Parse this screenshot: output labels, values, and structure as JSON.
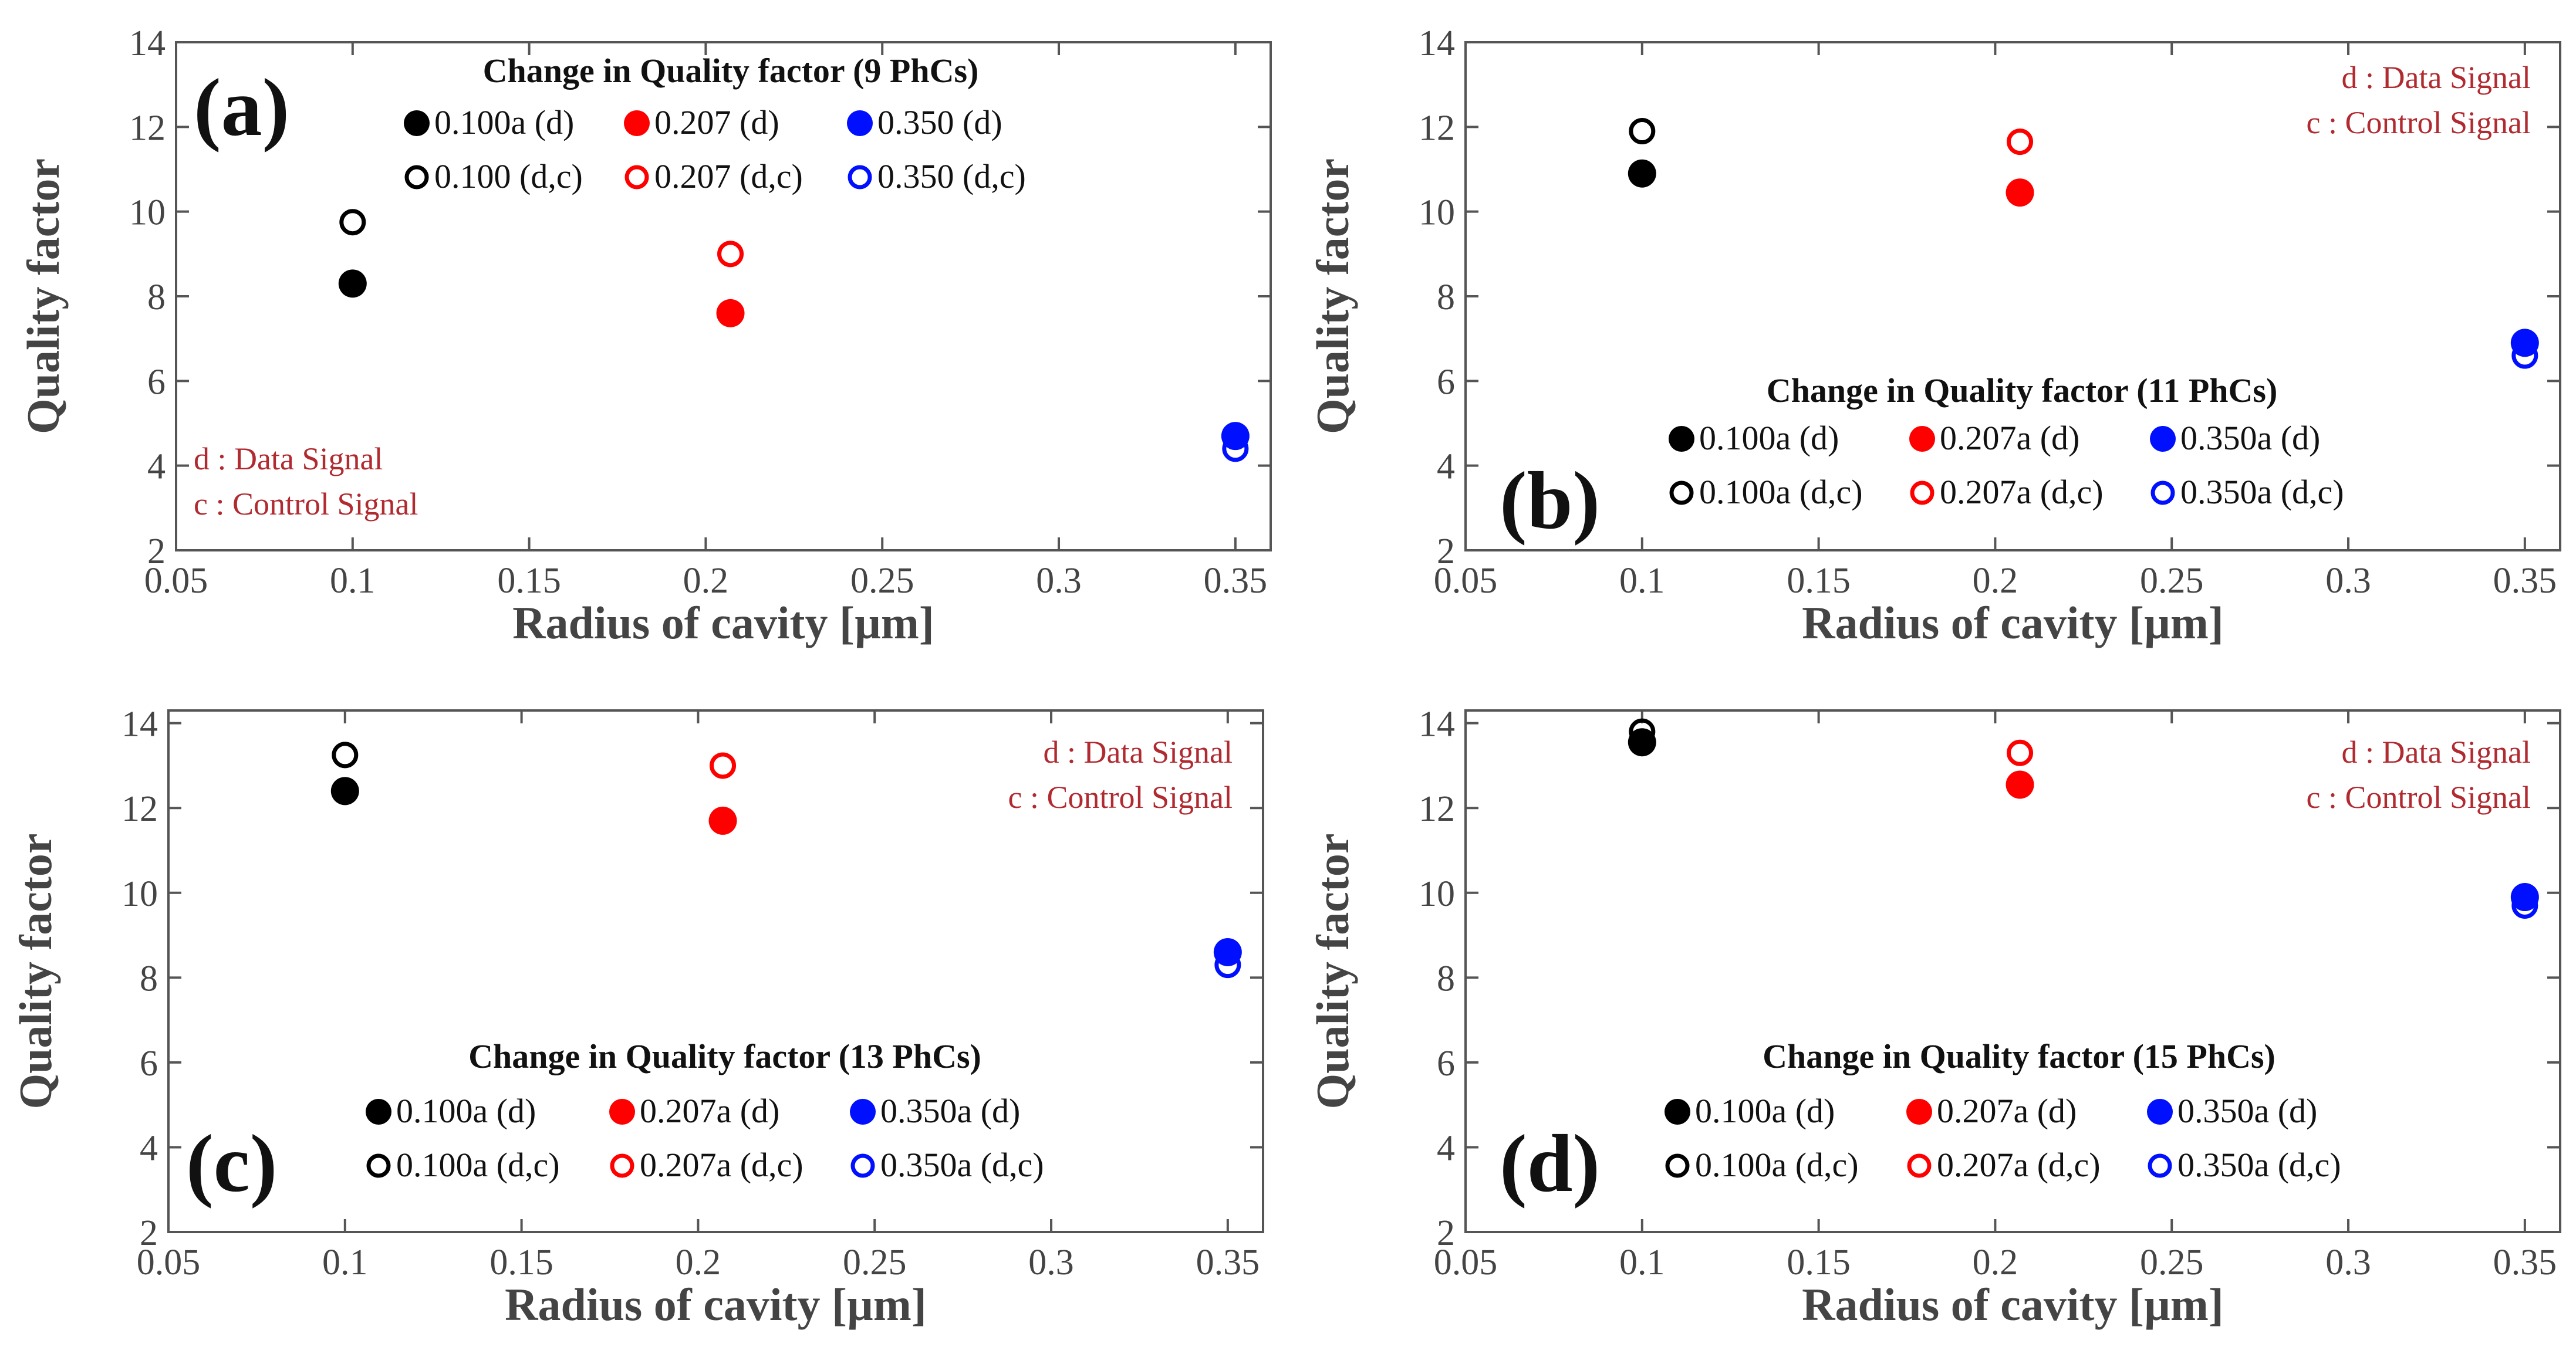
{
  "chart_data": [
    {
      "type": "scatter",
      "panel_label": "(a)",
      "title": "Change in Quality factor (9 PhCs)",
      "xlabel": "Radius of cavity [µm]",
      "ylabel": "Quality factor",
      "xlim": [
        0.05,
        0.36
      ],
      "ylim": [
        2,
        14
      ],
      "xticks": [
        0.05,
        0.1,
        0.15,
        0.2,
        0.25,
        0.3,
        0.35
      ],
      "xtick_labels": [
        "0.05",
        "0.1",
        "0.15",
        "0.2",
        "0.25",
        "0.3",
        "0.35"
      ],
      "yticks": [
        2,
        4,
        6,
        8,
        10,
        12,
        14
      ],
      "ytick_labels": [
        "2",
        "4",
        "6",
        "8",
        "10",
        "12",
        "14"
      ],
      "legend_placement": "top-center",
      "notes": [
        "d : Data Signal",
        "c : Control Signal"
      ],
      "notes_placement": "bottom-left",
      "series": [
        {
          "name": "0.100a (d)",
          "color": "#000000",
          "filled": true,
          "x": [
            0.1
          ],
          "y": [
            8.3
          ]
        },
        {
          "name": "0.207 (d)",
          "color": "#ff0000",
          "filled": true,
          "x": [
            0.207
          ],
          "y": [
            7.6
          ]
        },
        {
          "name": "0.350 (d)",
          "color": "#0010ff",
          "filled": true,
          "x": [
            0.35
          ],
          "y": [
            4.7
          ]
        },
        {
          "name": "0.100 (d,c)",
          "color": "#000000",
          "filled": false,
          "x": [
            0.1
          ],
          "y": [
            9.75
          ]
        },
        {
          "name": "0.207 (d,c)",
          "color": "#ff0000",
          "filled": false,
          "x": [
            0.207
          ],
          "y": [
            9.0
          ]
        },
        {
          "name": "0.350 (d,c)",
          "color": "#0010ff",
          "filled": false,
          "x": [
            0.35
          ],
          "y": [
            4.4
          ]
        }
      ]
    },
    {
      "type": "scatter",
      "panel_label": "(b)",
      "title": "Change in Quality factor (11 PhCs)",
      "xlabel": "Radius of cavity [µm]",
      "ylabel": "Quality factor",
      "xlim": [
        0.05,
        0.36
      ],
      "ylim": [
        2,
        14
      ],
      "xticks": [
        0.05,
        0.1,
        0.15,
        0.2,
        0.25,
        0.3,
        0.35
      ],
      "xtick_labels": [
        "0.05",
        "0.1",
        "0.15",
        "0.2",
        "0.25",
        "0.3",
        "0.35"
      ],
      "yticks": [
        2,
        4,
        6,
        8,
        10,
        12,
        14
      ],
      "ytick_labels": [
        "2",
        "4",
        "6",
        "8",
        "10",
        "12",
        "14"
      ],
      "legend_placement": "bottom-center",
      "notes": [
        "d : Data Signal",
        "c : Control Signal"
      ],
      "notes_placement": "top-right",
      "series": [
        {
          "name": "0.100a (d)",
          "color": "#000000",
          "filled": true,
          "x": [
            0.1
          ],
          "y": [
            10.9
          ]
        },
        {
          "name": "0.207a (d)",
          "color": "#ff0000",
          "filled": true,
          "x": [
            0.207
          ],
          "y": [
            10.45
          ]
        },
        {
          "name": "0.350a (d)",
          "color": "#0010ff",
          "filled": true,
          "x": [
            0.35
          ],
          "y": [
            6.9
          ]
        },
        {
          "name": "0.100a (d,c)",
          "color": "#000000",
          "filled": false,
          "x": [
            0.1
          ],
          "y": [
            11.9
          ]
        },
        {
          "name": "0.207a (d,c)",
          "color": "#ff0000",
          "filled": false,
          "x": [
            0.207
          ],
          "y": [
            11.65
          ]
        },
        {
          "name": "0.350a (d,c)",
          "color": "#0010ff",
          "filled": false,
          "x": [
            0.35
          ],
          "y": [
            6.6
          ]
        }
      ]
    },
    {
      "type": "scatter",
      "panel_label": "(c)",
      "title": "Change in Quality factor (13 PhCs)",
      "xlabel": "Radius of cavity [µm]",
      "ylabel": "Quality factor",
      "xlim": [
        0.05,
        0.36
      ],
      "ylim": [
        2,
        14.3
      ],
      "xticks": [
        0.05,
        0.1,
        0.15,
        0.2,
        0.25,
        0.3,
        0.35
      ],
      "xtick_labels": [
        "0.05",
        "0.1",
        "0.15",
        "0.2",
        "0.25",
        "0.3",
        "0.35"
      ],
      "yticks": [
        2,
        4,
        6,
        8,
        10,
        12,
        14
      ],
      "ytick_labels": [
        "2",
        "4",
        "6",
        "8",
        "10",
        "12",
        "14"
      ],
      "legend_placement": "bottom-center",
      "notes": [
        "d : Data Signal",
        "c : Control Signal"
      ],
      "notes_placement": "top-right",
      "series": [
        {
          "name": "0.100a (d)",
          "color": "#000000",
          "filled": true,
          "x": [
            0.1
          ],
          "y": [
            12.4
          ]
        },
        {
          "name": "0.207a (d)",
          "color": "#ff0000",
          "filled": true,
          "x": [
            0.207
          ],
          "y": [
            11.7
          ]
        },
        {
          "name": "0.350a (d)",
          "color": "#0010ff",
          "filled": true,
          "x": [
            0.35
          ],
          "y": [
            8.6
          ]
        },
        {
          "name": "0.100a (d,c)",
          "color": "#000000",
          "filled": false,
          "x": [
            0.1
          ],
          "y": [
            13.25
          ]
        },
        {
          "name": "0.207a (d,c)",
          "color": "#ff0000",
          "filled": false,
          "x": [
            0.207
          ],
          "y": [
            13.0
          ]
        },
        {
          "name": "0.350a (d,c)",
          "color": "#0010ff",
          "filled": false,
          "x": [
            0.35
          ],
          "y": [
            8.3
          ]
        }
      ]
    },
    {
      "type": "scatter",
      "panel_label": "(d)",
      "title": "Change in Quality factor (15 PhCs)",
      "xlabel": "Radius of cavity [µm]",
      "ylabel": "Quality factor",
      "xlim": [
        0.05,
        0.36
      ],
      "ylim": [
        2,
        14.3
      ],
      "xticks": [
        0.05,
        0.1,
        0.15,
        0.2,
        0.25,
        0.3,
        0.35
      ],
      "xtick_labels": [
        "0.05",
        "0.1",
        "0.15",
        "0.2",
        "0.25",
        "0.3",
        "0.35"
      ],
      "yticks": [
        2,
        4,
        6,
        8,
        10,
        12,
        14
      ],
      "ytick_labels": [
        "2",
        "4",
        "6",
        "8",
        "10",
        "12",
        "14"
      ],
      "legend_placement": "bottom-center",
      "notes": [
        "d : Data Signal",
        "c : Control Signal"
      ],
      "notes_placement": "top-right",
      "series": [
        {
          "name": "0.100a (d)",
          "color": "#000000",
          "filled": true,
          "x": [
            0.1
          ],
          "y": [
            13.55
          ]
        },
        {
          "name": "0.207a (d)",
          "color": "#ff0000",
          "filled": true,
          "x": [
            0.207
          ],
          "y": [
            12.55
          ]
        },
        {
          "name": "0.350a (d)",
          "color": "#0010ff",
          "filled": true,
          "x": [
            0.35
          ],
          "y": [
            9.9
          ]
        },
        {
          "name": "0.100a (d,c)",
          "color": "#000000",
          "filled": false,
          "x": [
            0.1
          ],
          "y": [
            13.8
          ]
        },
        {
          "name": "0.207a (d,c)",
          "color": "#ff0000",
          "filled": false,
          "x": [
            0.207
          ],
          "y": [
            13.3
          ]
        },
        {
          "name": "0.350a (d,c)",
          "color": "#0010ff",
          "filled": false,
          "x": [
            0.35
          ],
          "y": [
            9.7
          ]
        }
      ]
    }
  ]
}
